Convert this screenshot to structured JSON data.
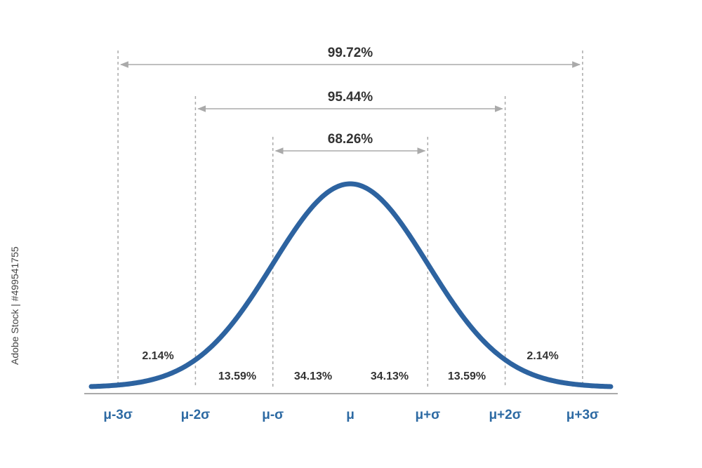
{
  "ranges": [
    "99.72%",
    "95.44%",
    "68.26%"
  ],
  "segments": [
    "2.14%",
    "13.59%",
    "34.13%",
    "34.13%",
    "13.59%",
    "2.14%"
  ],
  "axis_labels": [
    "μ-3σ",
    "μ-2σ",
    "μ-σ",
    "μ",
    "μ+σ",
    "μ+2σ",
    "μ+3σ"
  ],
  "watermark": "Adobe Stock | #499541755"
}
